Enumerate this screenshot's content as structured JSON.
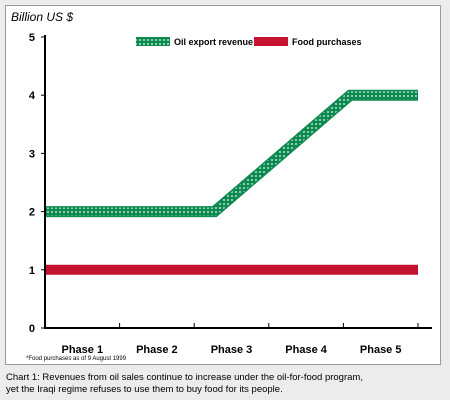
{
  "chart_data": {
    "type": "line",
    "ylabel": "Billion US $",
    "categories": [
      "Phase 1",
      "Phase 2",
      "Phase 3",
      "Phase 4",
      "Phase 5"
    ],
    "x_points": [
      0.5,
      1.0,
      2.0,
      3.0,
      4.0,
      5.0,
      6.0
    ],
    "ylim": [
      0,
      5
    ],
    "yticks": [
      0,
      1,
      2,
      3,
      4,
      5
    ],
    "grid": false,
    "legend_position": "top-right",
    "series": [
      {
        "name": "Oil export revenue",
        "color": "#0a8a4e",
        "pattern": "dotted",
        "x": [
          0.5,
          1.0,
          2.0,
          3.0,
          4.0,
          5.0,
          6.0
        ],
        "values": [
          2,
          2,
          2,
          2,
          3,
          4,
          4
        ]
      },
      {
        "name": "Food purchases",
        "color": "#c4122f",
        "pattern": "solid",
        "x": [
          0.5,
          1.0,
          2.0,
          3.0,
          4.0,
          5.0,
          6.0
        ],
        "values": [
          1,
          1,
          1,
          1,
          1,
          1,
          1
        ]
      }
    ]
  },
  "footnote": "*Food purchases as of 9 August 1999",
  "caption": {
    "line1": "Chart 1: Revenues from oil sales continue to increase under the oil-for-food program,",
    "line2": "yet the Iraqi regime refuses to use them to buy food for its people."
  }
}
